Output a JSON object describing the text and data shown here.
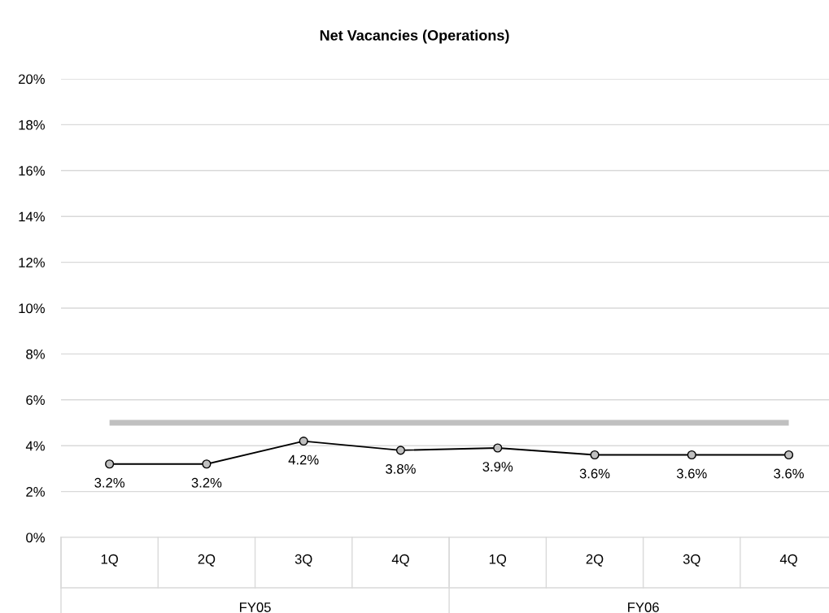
{
  "chart_data": {
    "type": "line",
    "title": "Net Vacancies (Operations)",
    "categories": [
      "1Q",
      "2Q",
      "3Q",
      "4Q",
      "1Q",
      "2Q",
      "3Q",
      "4Q"
    ],
    "series": [
      {
        "color": "#000000",
        "values": [
          3.2,
          3.2,
          4.2,
          3.8,
          3.9,
          3.6,
          3.6,
          3.6
        ]
      }
    ],
    "value_labels": [
      "3.2%",
      "3.2%",
      "4.2%",
      "3.8%",
      "3.9%",
      "3.6%",
      "3.6%",
      "3.6%"
    ],
    "ref_lines": [
      {
        "axis": "y",
        "value": 5,
        "color": "#c0c0c0"
      }
    ],
    "annotations": [
      "FY05",
      "FY06"
    ],
    "ylim": [
      0,
      20
    ],
    "yticks": [
      {
        "value": 0,
        "label": "0%"
      },
      {
        "value": 2,
        "label": "2%"
      },
      {
        "value": 4,
        "label": "4%"
      },
      {
        "value": 6,
        "label": "6%"
      },
      {
        "value": 8,
        "label": "8%"
      },
      {
        "value": 10,
        "label": "10%"
      },
      {
        "value": 12,
        "label": "12%"
      },
      {
        "value": 14,
        "label": "14%"
      },
      {
        "value": 16,
        "label": "16%"
      },
      {
        "value": 18,
        "label": "18%"
      },
      {
        "value": 20,
        "label": "20%"
      }
    ],
    "grid": "y",
    "marker": "circle",
    "line_style": "solid",
    "legend": false
  }
}
